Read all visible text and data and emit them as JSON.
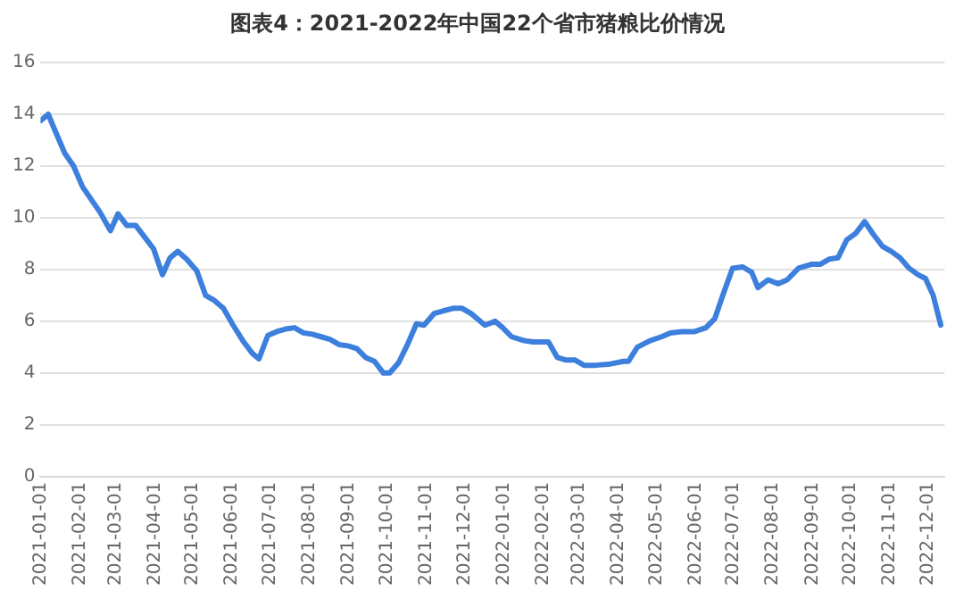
{
  "chart_data": {
    "type": "line",
    "title": "图表4：2021-2022年中国22个省市猪粮比价情况",
    "x": [
      "2021-01-01",
      "2021-01-07",
      "2021-01-13",
      "2021-01-20",
      "2021-01-27",
      "2021-02-03",
      "2021-02-10",
      "2021-02-17",
      "2021-02-25",
      "2021-03-03",
      "2021-03-10",
      "2021-03-17",
      "2021-03-24",
      "2021-03-31",
      "2021-04-07",
      "2021-04-13",
      "2021-04-19",
      "2021-04-26",
      "2021-05-04",
      "2021-05-11",
      "2021-05-18",
      "2021-05-25",
      "2021-06-01",
      "2021-06-10",
      "2021-06-17",
      "2021-06-22",
      "2021-06-29",
      "2021-07-06",
      "2021-07-13",
      "2021-07-20",
      "2021-07-27",
      "2021-08-03",
      "2021-08-10",
      "2021-08-17",
      "2021-08-24",
      "2021-08-31",
      "2021-09-07",
      "2021-09-14",
      "2021-09-21",
      "2021-09-28",
      "2021-10-03",
      "2021-10-10",
      "2021-10-17",
      "2021-10-24",
      "2021-10-30",
      "2021-11-07",
      "2021-11-14",
      "2021-11-22",
      "2021-11-29",
      "2021-12-06",
      "2021-12-17",
      "2021-12-25",
      "2021-12-31",
      "2022-01-07",
      "2022-01-17",
      "2022-01-24",
      "2022-02-05",
      "2022-02-12",
      "2022-02-19",
      "2022-02-26",
      "2022-03-05",
      "2022-03-14",
      "2022-03-26",
      "2022-04-05",
      "2022-04-09",
      "2022-04-16",
      "2022-04-26",
      "2022-05-05",
      "2022-05-12",
      "2022-05-22",
      "2022-05-31",
      "2022-06-09",
      "2022-06-16",
      "2022-06-23",
      "2022-06-30",
      "2022-07-08",
      "2022-07-15",
      "2022-07-20",
      "2022-07-28",
      "2022-08-05",
      "2022-08-12",
      "2022-08-21",
      "2022-08-31",
      "2022-09-07",
      "2022-09-14",
      "2022-09-21",
      "2022-09-28",
      "2022-10-05",
      "2022-10-12",
      "2022-10-19",
      "2022-10-26",
      "2022-11-02",
      "2022-11-09",
      "2022-11-16",
      "2022-11-23",
      "2022-11-29",
      "2022-12-05",
      "2022-12-11"
    ],
    "series": [
      {
        "color": "#3d7fdc",
        "values": [
          13.75,
          14.0,
          13.3,
          12.5,
          12.0,
          11.2,
          10.7,
          10.2,
          9.5,
          10.15,
          9.7,
          9.7,
          9.25,
          8.8,
          7.8,
          8.45,
          8.7,
          8.4,
          7.95,
          7.0,
          6.8,
          6.5,
          5.9,
          5.2,
          4.75,
          4.55,
          5.45,
          5.6,
          5.7,
          5.75,
          5.55,
          5.5,
          5.4,
          5.3,
          5.1,
          5.05,
          4.95,
          4.6,
          4.45,
          4.0,
          4.0,
          4.4,
          5.1,
          5.9,
          5.85,
          6.3,
          6.4,
          6.5,
          6.5,
          6.3,
          5.85,
          6.0,
          5.75,
          5.4,
          5.25,
          5.2,
          5.2,
          4.6,
          4.5,
          4.5,
          4.3,
          4.3,
          4.35,
          4.45,
          4.45,
          5.0,
          5.25,
          5.4,
          5.55,
          5.6,
          5.6,
          5.75,
          6.1,
          7.1,
          8.05,
          8.1,
          7.9,
          7.3,
          7.6,
          7.45,
          7.6,
          8.05,
          8.2,
          8.2,
          8.4,
          8.45,
          9.15,
          9.4,
          9.85,
          9.35,
          8.9,
          8.7,
          8.45,
          8.05,
          7.8,
          7.65,
          7.0,
          5.85
        ]
      }
    ],
    "xlim": [
      "2021-01-01",
      "2022-12-14"
    ],
    "xticks": [
      "2021-01-01",
      "2021-02-01",
      "2021-03-01",
      "2021-04-01",
      "2021-05-01",
      "2021-06-01",
      "2021-07-01",
      "2021-08-01",
      "2021-09-01",
      "2021-10-01",
      "2021-11-01",
      "2021-12-01",
      "2022-01-01",
      "2022-02-01",
      "2022-03-01",
      "2022-04-01",
      "2022-05-01",
      "2022-06-01",
      "2022-07-01",
      "2022-08-01",
      "2022-09-01",
      "2022-10-01",
      "2022-11-01",
      "2022-12-01"
    ],
    "ylim": [
      0,
      16
    ],
    "yticks": [
      0,
      2,
      4,
      6,
      8,
      10,
      12,
      14,
      16
    ],
    "grid": "y",
    "legend": false,
    "marker": "none",
    "line_style": "solid"
  }
}
